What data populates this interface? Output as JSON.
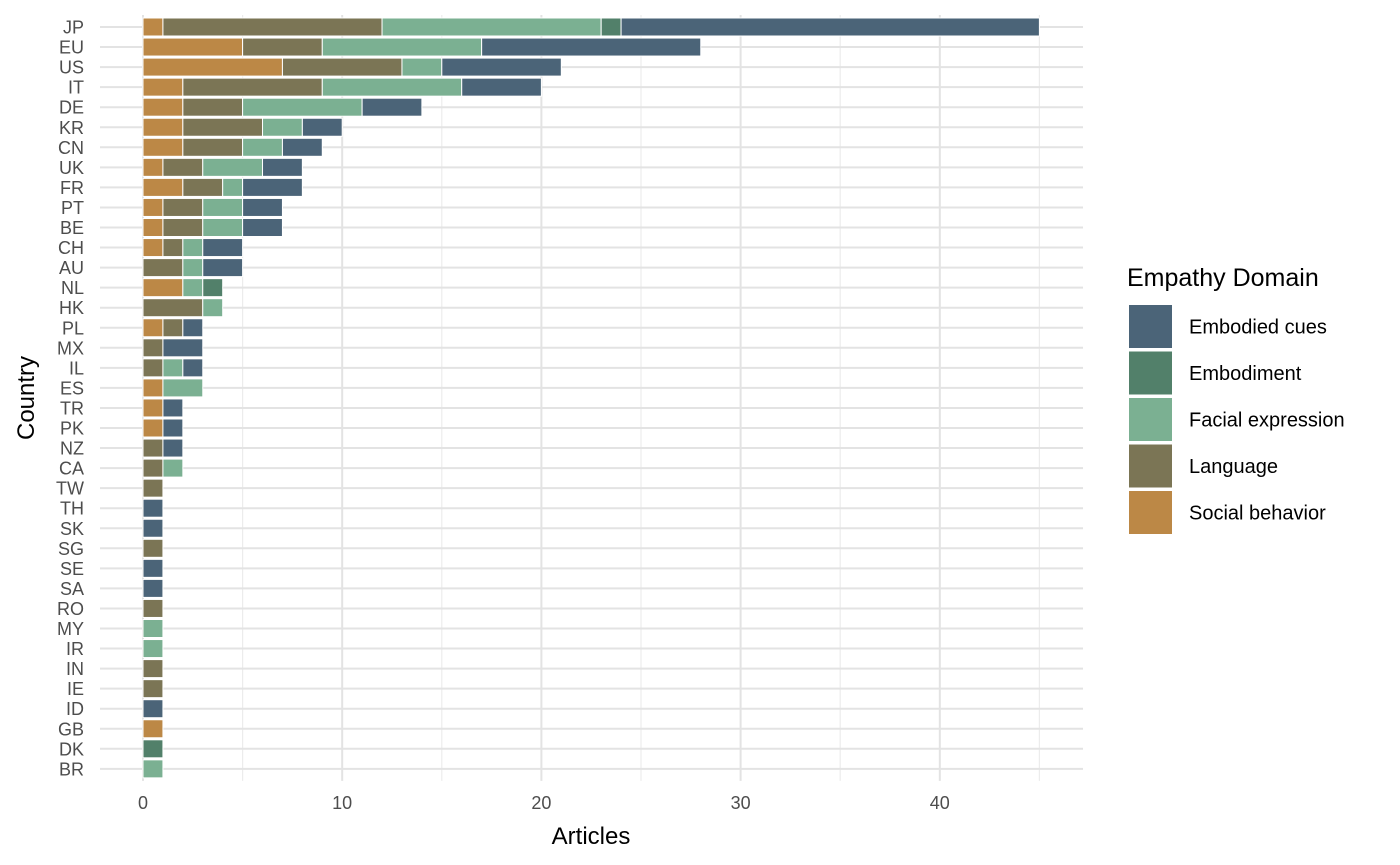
{
  "chart_data": {
    "type": "bar",
    "orientation": "horizontal",
    "stacked": true,
    "title": "",
    "xlabel": "Articles",
    "ylabel": "Country",
    "xlim": [
      0,
      47
    ],
    "xticks": [
      0,
      10,
      20,
      30,
      40
    ],
    "grid": true,
    "legend_position": "right",
    "legend_title": "Empathy Domain",
    "categories": [
      "JP",
      "EU",
      "US",
      "IT",
      "DE",
      "KR",
      "CN",
      "UK",
      "FR",
      "PT",
      "BE",
      "CH",
      "AU",
      "NL",
      "HK",
      "PL",
      "MX",
      "IL",
      "ES",
      "TR",
      "PK",
      "NZ",
      "CA",
      "TW",
      "TH",
      "SK",
      "SG",
      "SE",
      "SA",
      "RO",
      "MY",
      "IR",
      "IN",
      "IE",
      "ID",
      "GB",
      "DK",
      "BR"
    ],
    "series": [
      {
        "name": "Social behavior",
        "color": "#BC8846",
        "values": [
          1,
          5,
          7,
          2,
          2,
          2,
          2,
          1,
          2,
          1,
          1,
          1,
          0,
          2,
          0,
          1,
          0,
          0,
          1,
          1,
          1,
          0,
          0,
          0,
          0,
          0,
          0,
          0,
          0,
          0,
          0,
          0,
          0,
          0,
          0,
          1,
          0,
          0
        ]
      },
      {
        "name": "Language",
        "color": "#7B7555",
        "values": [
          11,
          4,
          6,
          7,
          3,
          4,
          3,
          2,
          2,
          2,
          2,
          1,
          2,
          0,
          3,
          1,
          1,
          1,
          0,
          0,
          0,
          1,
          1,
          1,
          0,
          0,
          1,
          0,
          0,
          1,
          0,
          0,
          1,
          1,
          0,
          0,
          0,
          0
        ]
      },
      {
        "name": "Facial expression",
        "color": "#7BB092",
        "values": [
          11,
          8,
          2,
          7,
          6,
          2,
          2,
          3,
          1,
          2,
          2,
          1,
          1,
          1,
          1,
          0,
          0,
          1,
          2,
          0,
          0,
          0,
          1,
          0,
          0,
          0,
          0,
          0,
          0,
          0,
          1,
          1,
          0,
          0,
          0,
          0,
          0,
          1
        ]
      },
      {
        "name": "Embodiment",
        "color": "#52806A",
        "values": [
          1,
          0,
          0,
          0,
          0,
          0,
          0,
          0,
          0,
          0,
          0,
          0,
          0,
          1,
          0,
          0,
          0,
          0,
          0,
          0,
          0,
          0,
          0,
          0,
          0,
          0,
          0,
          0,
          0,
          0,
          0,
          0,
          0,
          0,
          0,
          0,
          1,
          0
        ]
      },
      {
        "name": "Embodied cues",
        "color": "#4B6478",
        "values": [
          21,
          11,
          6,
          4,
          3,
          2,
          2,
          2,
          3,
          2,
          2,
          2,
          2,
          0,
          0,
          1,
          2,
          1,
          0,
          1,
          1,
          1,
          0,
          0,
          1,
          1,
          0,
          1,
          1,
          0,
          0,
          0,
          0,
          0,
          1,
          0,
          0,
          0
        ]
      }
    ],
    "legend_order": [
      "Embodied cues",
      "Embodiment",
      "Facial expression",
      "Language",
      "Social behavior"
    ]
  }
}
